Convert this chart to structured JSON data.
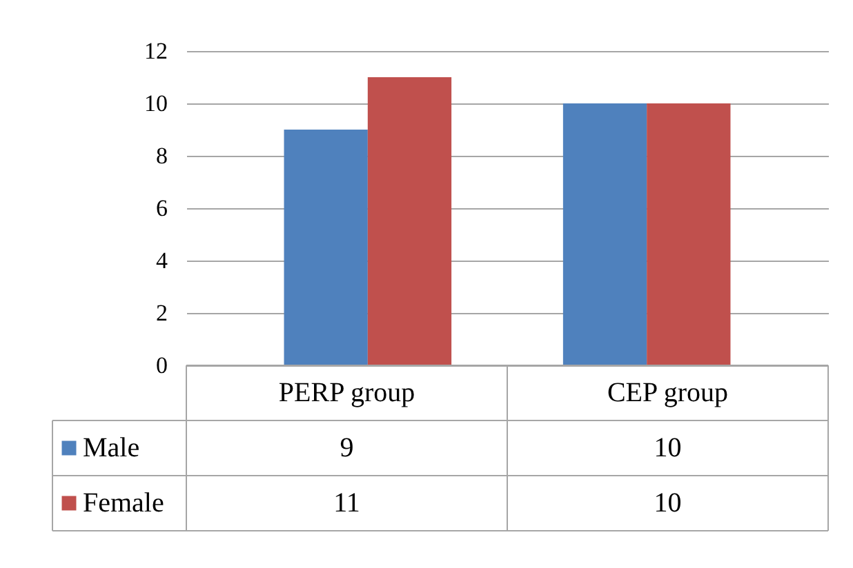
{
  "chart_data": {
    "type": "bar",
    "categories": [
      "PERP group",
      "CEP group"
    ],
    "series": [
      {
        "name": "Male",
        "color": "#4f81bd",
        "values": [
          9,
          10
        ]
      },
      {
        "name": "Female",
        "color": "#c0504d",
        "values": [
          11,
          10
        ]
      }
    ],
    "ylim": [
      0,
      12
    ],
    "yticks": [
      0,
      2,
      4,
      6,
      8,
      10,
      12
    ],
    "grid": "y",
    "legend": "bottom",
    "data_labels": true
  }
}
